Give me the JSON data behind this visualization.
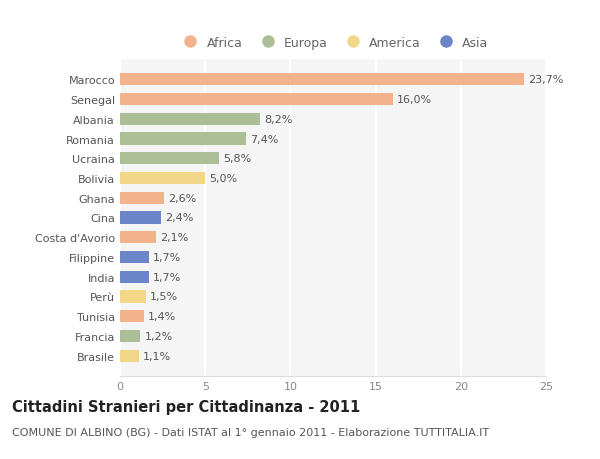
{
  "countries": [
    "Marocco",
    "Senegal",
    "Albania",
    "Romania",
    "Ucraina",
    "Bolivia",
    "Ghana",
    "Cina",
    "Costa d'Avorio",
    "Filippine",
    "India",
    "Perù",
    "Tunisia",
    "Francia",
    "Brasile"
  ],
  "values": [
    23.7,
    16.0,
    8.2,
    7.4,
    5.8,
    5.0,
    2.6,
    2.4,
    2.1,
    1.7,
    1.7,
    1.5,
    1.4,
    1.2,
    1.1
  ],
  "labels": [
    "23,7%",
    "16,0%",
    "8,2%",
    "7,4%",
    "5,8%",
    "5,0%",
    "2,6%",
    "2,4%",
    "2,1%",
    "1,7%",
    "1,7%",
    "1,5%",
    "1,4%",
    "1,2%",
    "1,1%"
  ],
  "continents": [
    "Africa",
    "Africa",
    "Europa",
    "Europa",
    "Europa",
    "America",
    "Africa",
    "Asia",
    "Africa",
    "Asia",
    "Asia",
    "America",
    "Africa",
    "Europa",
    "America"
  ],
  "colors": {
    "Africa": "#F2B28C",
    "Europa": "#ABBE96",
    "America": "#F2D788",
    "Asia": "#6B85C8"
  },
  "legend_order": [
    "Africa",
    "Europa",
    "America",
    "Asia"
  ],
  "xlim": [
    0,
    25
  ],
  "xticks": [
    0,
    5,
    10,
    15,
    20,
    25
  ],
  "title": "Cittadini Stranieri per Cittadinanza - 2011",
  "subtitle": "COMUNE DI ALBINO (BG) - Dati ISTAT al 1° gennaio 2011 - Elaborazione TUTTITALIA.IT",
  "bg_color": "#FFFFFF",
  "plot_bg_color": "#F5F5F5",
  "grid_color": "#FFFFFF",
  "title_fontsize": 10.5,
  "subtitle_fontsize": 8,
  "label_fontsize": 8,
  "tick_fontsize": 8,
  "legend_fontsize": 9
}
